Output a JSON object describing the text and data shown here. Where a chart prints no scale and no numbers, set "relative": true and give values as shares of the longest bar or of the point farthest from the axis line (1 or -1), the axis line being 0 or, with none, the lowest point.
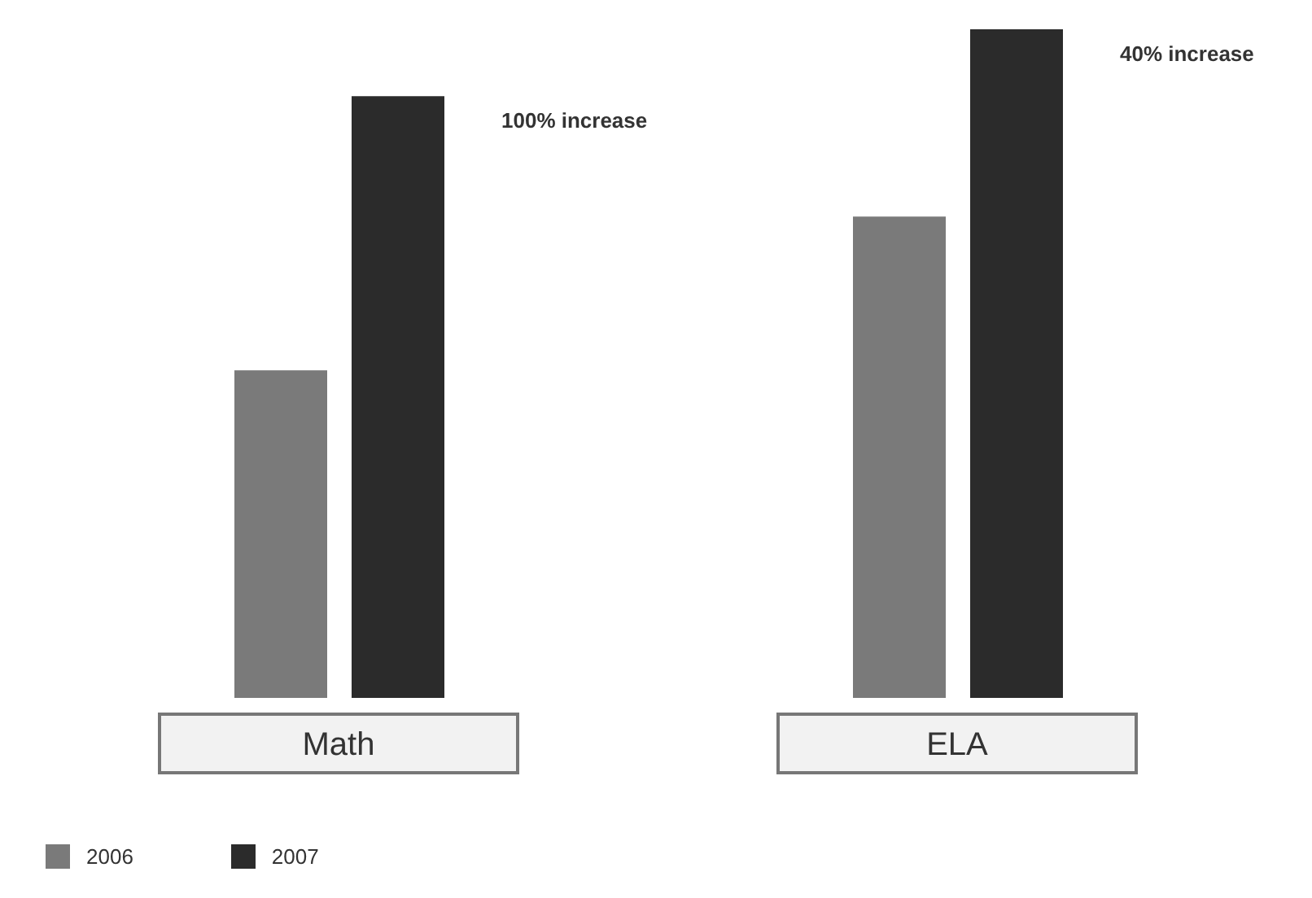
{
  "chart_data": {
    "type": "bar",
    "relative": true,
    "categories": [
      "Math",
      "ELA"
    ],
    "series": [
      {
        "name": "2006",
        "color": "#7a7a7a",
        "values": [
          0.49,
          0.72
        ]
      },
      {
        "name": "2007",
        "color": "#2b2b2b",
        "values": [
          0.9,
          1
        ]
      }
    ],
    "annotations": [
      "100% increase",
      "40% increase"
    ],
    "legend": "bottom left"
  }
}
